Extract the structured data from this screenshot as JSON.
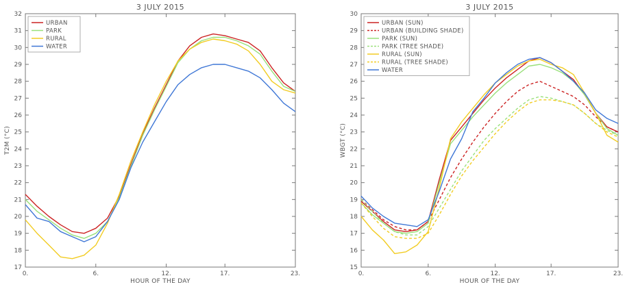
{
  "chart_data": [
    {
      "type": "line",
      "title": "3 JULY 2015",
      "xlabel": "HOUR OF THE DAY",
      "ylabel": "T2M (°C)",
      "xlim": [
        0,
        23
      ],
      "ylim": [
        17,
        32
      ],
      "xticks": [
        0,
        6,
        12,
        17,
        23
      ],
      "xtick_labels": [
        "0.",
        "6.",
        "12.",
        "17.",
        "23."
      ],
      "yticks": [
        17,
        18,
        19,
        20,
        21,
        22,
        23,
        24,
        25,
        26,
        27,
        28,
        29,
        30,
        31,
        32
      ],
      "grid": false,
      "legend_position": "top-left",
      "x": [
        0,
        1,
        2,
        3,
        4,
        5,
        6,
        7,
        8,
        9,
        10,
        11,
        12,
        13,
        14,
        15,
        16,
        17,
        18,
        19,
        20,
        21,
        22,
        23
      ],
      "series": [
        {
          "name": "URBAN",
          "color": "#cc2222",
          "dash": "solid",
          "values": [
            21.3,
            20.6,
            20.0,
            19.5,
            19.1,
            19.0,
            19.3,
            19.9,
            21.2,
            23.1,
            24.9,
            26.4,
            27.8,
            29.2,
            30.1,
            30.6,
            30.8,
            30.7,
            30.5,
            30.3,
            29.8,
            28.8,
            27.9,
            27.4
          ]
        },
        {
          "name": "PARK",
          "color": "#99e07a",
          "dash": "solid",
          "values": [
            21.0,
            20.3,
            19.8,
            19.3,
            18.9,
            18.7,
            19.0,
            19.7,
            21.1,
            23.0,
            24.8,
            26.3,
            27.7,
            29.1,
            29.9,
            30.4,
            30.6,
            30.6,
            30.4,
            30.1,
            29.6,
            28.6,
            27.7,
            27.4
          ]
        },
        {
          "name": "RURAL",
          "color": "#f2cc22",
          "dash": "solid",
          "values": [
            19.8,
            19.0,
            18.3,
            17.6,
            17.5,
            17.7,
            18.3,
            19.6,
            21.3,
            23.3,
            25.0,
            26.6,
            28.0,
            29.2,
            29.9,
            30.3,
            30.5,
            30.4,
            30.2,
            29.8,
            29.0,
            28.0,
            27.5,
            27.3
          ]
        },
        {
          "name": "WATER",
          "color": "#3f77d6",
          "dash": "solid",
          "values": [
            20.7,
            19.9,
            19.7,
            19.1,
            18.8,
            18.5,
            18.8,
            19.7,
            21.0,
            22.9,
            24.4,
            25.6,
            26.8,
            27.8,
            28.4,
            28.8,
            29.0,
            29.0,
            28.8,
            28.6,
            28.2,
            27.5,
            26.7,
            26.2
          ]
        }
      ]
    },
    {
      "type": "line",
      "title": "3 JULY 2015",
      "xlabel": "HOUR OF THE DAY",
      "ylabel": "WBGT (°C)",
      "xlim": [
        0,
        23
      ],
      "ylim": [
        15,
        30
      ],
      "xticks": [
        0,
        6,
        12,
        17,
        23
      ],
      "xtick_labels": [
        "0.",
        "6.",
        "12.",
        "17.",
        "23."
      ],
      "yticks": [
        15,
        16,
        17,
        18,
        19,
        20,
        21,
        22,
        23,
        24,
        25,
        26,
        27,
        28,
        29,
        30
      ],
      "grid": false,
      "legend_position": "top-left",
      "x": [
        0,
        1,
        2,
        3,
        4,
        5,
        6,
        7,
        8,
        9,
        10,
        11,
        12,
        13,
        14,
        15,
        16,
        17,
        18,
        19,
        20,
        21,
        22,
        23
      ],
      "series": [
        {
          "name": "URBAN (SUN)",
          "color": "#cc2222",
          "dash": "solid",
          "values": [
            18.9,
            18.3,
            17.7,
            17.2,
            17.1,
            17.2,
            17.7,
            20.2,
            22.5,
            23.3,
            24.1,
            24.9,
            25.6,
            26.2,
            26.7,
            27.2,
            27.4,
            27.1,
            26.6,
            26.1,
            25.2,
            24.1,
            23.3,
            23.0
          ]
        },
        {
          "name": "URBAN (BUILDING SHADE)",
          "color": "#cc2222",
          "dash": "dashed",
          "values": [
            19.0,
            18.4,
            17.8,
            17.4,
            17.2,
            17.2,
            17.7,
            19.0,
            20.3,
            21.4,
            22.4,
            23.3,
            24.1,
            24.8,
            25.4,
            25.8,
            26.0,
            25.7,
            25.4,
            25.1,
            24.6,
            23.9,
            23.3,
            23.0
          ]
        },
        {
          "name": "PARK (SUN)",
          "color": "#99e07a",
          "dash": "solid",
          "values": [
            18.8,
            18.1,
            17.6,
            17.1,
            17.0,
            17.1,
            17.6,
            20.0,
            22.3,
            23.1,
            23.9,
            24.6,
            25.3,
            25.9,
            26.4,
            26.9,
            27.0,
            26.8,
            26.5,
            26.0,
            25.2,
            24.1,
            23.2,
            22.8
          ]
        },
        {
          "name": "PARK (TREE SHADE)",
          "color": "#99e07a",
          "dash": "dashed",
          "values": [
            19.0,
            18.3,
            17.6,
            17.1,
            16.9,
            16.9,
            17.4,
            18.5,
            19.6,
            20.7,
            21.6,
            22.5,
            23.2,
            23.8,
            24.4,
            24.9,
            25.1,
            25.0,
            24.8,
            24.6,
            24.1,
            23.5,
            23.1,
            22.8
          ]
        },
        {
          "name": "RURAL (SUN)",
          "color": "#f2cc22",
          "dash": "solid",
          "values": [
            18.0,
            17.2,
            16.6,
            15.8,
            15.9,
            16.3,
            17.1,
            19.7,
            22.6,
            23.6,
            24.4,
            25.2,
            25.9,
            26.4,
            26.9,
            27.2,
            27.3,
            27.0,
            26.8,
            26.4,
            25.3,
            24.1,
            22.8,
            22.4
          ]
        },
        {
          "name": "RURAL (TREE SHADE)",
          "color": "#f2cc22",
          "dash": "dashed",
          "values": [
            18.8,
            18.0,
            17.3,
            16.8,
            16.7,
            16.7,
            17.0,
            18.1,
            19.3,
            20.4,
            21.3,
            22.1,
            22.9,
            23.6,
            24.2,
            24.7,
            24.9,
            24.9,
            24.8,
            24.6,
            24.1,
            23.5,
            23.0,
            22.7
          ]
        },
        {
          "name": "WATER",
          "color": "#3f77d6",
          "dash": "solid",
          "values": [
            19.2,
            18.5,
            18.0,
            17.6,
            17.5,
            17.4,
            17.8,
            19.5,
            21.4,
            22.6,
            24.2,
            25.0,
            25.9,
            26.5,
            27.0,
            27.3,
            27.4,
            27.1,
            26.6,
            26.0,
            25.3,
            24.3,
            23.8,
            23.5
          ]
        }
      ]
    }
  ]
}
